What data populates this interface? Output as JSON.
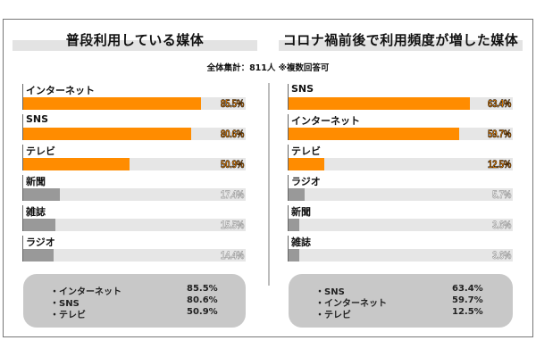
{
  "total_label": "全体集計：811人 ※複数回答可",
  "colors": {
    "highlight": "#ff8c00",
    "muted": "#999999",
    "track": "#e6e6e6",
    "summary_bg": "#c8c8c8"
  },
  "chart_data": [
    {
      "type": "bar",
      "orientation": "horizontal",
      "title": "普段利用している媒体",
      "unit": "%",
      "categories": [
        "インターネット",
        "SNS",
        "テレビ",
        "新聞",
        "雑誌",
        "ラジオ"
      ],
      "values": [
        85.5,
        80.6,
        50.9,
        17.4,
        15.5,
        14.4
      ],
      "value_labels": [
        "85.5%",
        "80.6%",
        "50.9%",
        "17.4%",
        "15.5%",
        "14.4%"
      ],
      "highlighted": [
        true,
        true,
        true,
        false,
        false,
        false
      ],
      "summary": [
        {
          "label": "・インターネット",
          "value": "85.5%"
        },
        {
          "label": "・SNS",
          "value": "80.6%"
        },
        {
          "label": "・テレビ",
          "value": "50.9%"
        }
      ]
    },
    {
      "type": "bar",
      "orientation": "horizontal",
      "title": "コロナ禍前後で利用頻度が増した媒体",
      "unit": "%",
      "categories": [
        "SNS",
        "インターネット",
        "テレビ",
        "ラジオ",
        "新聞",
        "雑誌"
      ],
      "values": [
        63.4,
        59.7,
        12.5,
        5.7,
        3.6,
        3.6
      ],
      "value_labels": [
        "63.4%",
        "59.7%",
        "12.5%",
        "5.7%",
        "3.6%",
        "3.6%"
      ],
      "highlighted": [
        true,
        true,
        true,
        false,
        false,
        false
      ],
      "summary": [
        {
          "label": "・SNS",
          "value": "63.4%"
        },
        {
          "label": "・インターネット",
          "value": "59.7%"
        },
        {
          "label": "・テレビ",
          "value": "12.5%"
        }
      ]
    }
  ]
}
